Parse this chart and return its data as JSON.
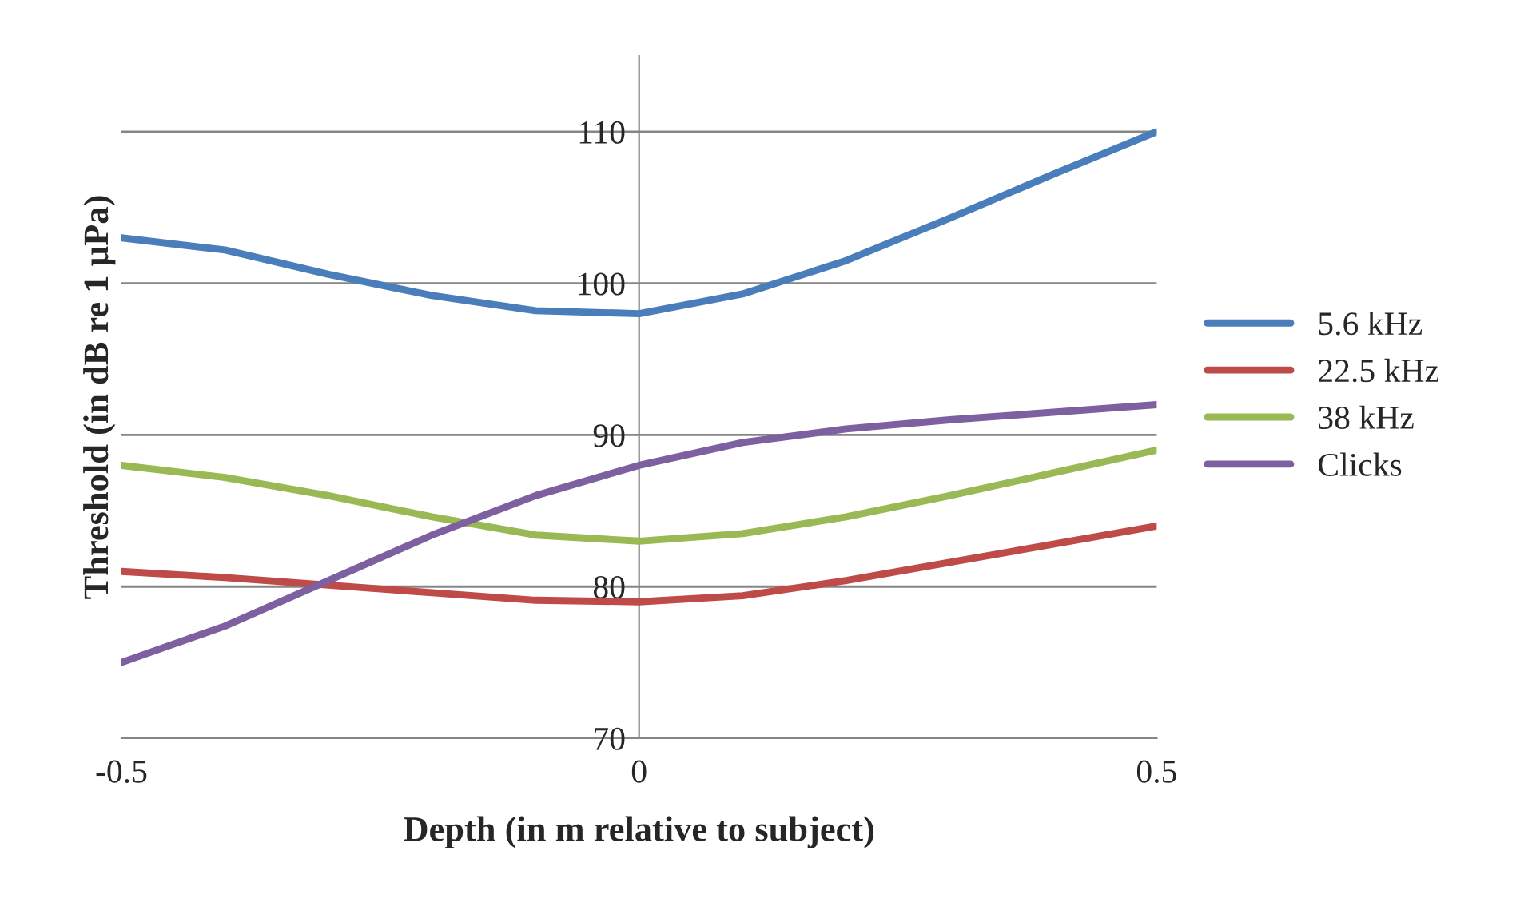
{
  "chart_data": {
    "type": "line",
    "xlabel": "Depth (in m relative to subject)",
    "ylabel": "Threshold (in dB re 1 µPa)",
    "x": [
      -0.5,
      -0.4,
      -0.3,
      -0.2,
      -0.1,
      0,
      0.1,
      0.2,
      0.3,
      0.4,
      0.5
    ],
    "series": [
      {
        "name": "5.6 kHz",
        "color": "#4a7ebb",
        "values": [
          103,
          102.2,
          100.6,
          99.2,
          98.2,
          98,
          99.3,
          101.5,
          104.3,
          107.2,
          110
        ]
      },
      {
        "name": "22.5 kHz",
        "color": "#be4b48",
        "values": [
          81,
          80.6,
          80.1,
          79.6,
          79.1,
          79,
          79.4,
          80.4,
          81.6,
          82.8,
          84
        ]
      },
      {
        "name": "38 kHz",
        "color": "#98b954",
        "values": [
          88,
          87.2,
          86,
          84.6,
          83.4,
          83,
          83.5,
          84.6,
          86,
          87.5,
          89
        ]
      },
      {
        "name": "Clicks",
        "color": "#7d60a0",
        "values": [
          75,
          77.4,
          80.4,
          83.4,
          86,
          88,
          89.5,
          90.4,
          91,
          91.5,
          92
        ]
      }
    ],
    "xlim": [
      -0.5,
      0.5
    ],
    "xticks": [
      -0.5,
      0,
      0.5
    ],
    "ylim": [
      70,
      115
    ],
    "yticks": [
      70,
      80,
      90,
      100,
      110
    ],
    "grid": "y",
    "legend": "right",
    "marker": "none",
    "line_style": "solid"
  }
}
